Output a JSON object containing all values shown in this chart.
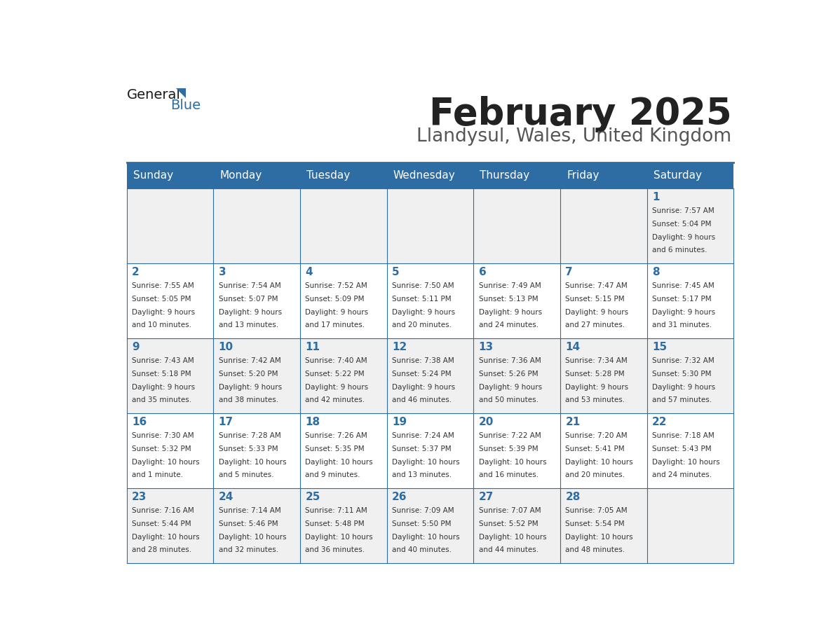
{
  "title": "February 2025",
  "subtitle": "Llandysul, Wales, United Kingdom",
  "header_bg": "#2E6DA4",
  "header_text": "#FFFFFF",
  "day_names": [
    "Sunday",
    "Monday",
    "Tuesday",
    "Wednesday",
    "Thursday",
    "Friday",
    "Saturday"
  ],
  "alt_row_bg": "#F0F0F0",
  "white_bg": "#FFFFFF",
  "border_color": "#2E6DA4",
  "title_color": "#222222",
  "subtitle_color": "#555555",
  "cell_text_color": "#333333",
  "day_num_color": "#2E6DA4",
  "logo_general_color": "#1A1A1A",
  "logo_blue_color": "#2E6DA4",
  "days": [
    {
      "date": 1,
      "row": 0,
      "col": 6,
      "sunrise": "7:57 AM",
      "sunset": "5:04 PM",
      "daylight_l1": "9 hours",
      "daylight_l2": "and 6 minutes."
    },
    {
      "date": 2,
      "row": 1,
      "col": 0,
      "sunrise": "7:55 AM",
      "sunset": "5:05 PM",
      "daylight_l1": "9 hours",
      "daylight_l2": "and 10 minutes."
    },
    {
      "date": 3,
      "row": 1,
      "col": 1,
      "sunrise": "7:54 AM",
      "sunset": "5:07 PM",
      "daylight_l1": "9 hours",
      "daylight_l2": "and 13 minutes."
    },
    {
      "date": 4,
      "row": 1,
      "col": 2,
      "sunrise": "7:52 AM",
      "sunset": "5:09 PM",
      "daylight_l1": "9 hours",
      "daylight_l2": "and 17 minutes."
    },
    {
      "date": 5,
      "row": 1,
      "col": 3,
      "sunrise": "7:50 AM",
      "sunset": "5:11 PM",
      "daylight_l1": "9 hours",
      "daylight_l2": "and 20 minutes."
    },
    {
      "date": 6,
      "row": 1,
      "col": 4,
      "sunrise": "7:49 AM",
      "sunset": "5:13 PM",
      "daylight_l1": "9 hours",
      "daylight_l2": "and 24 minutes."
    },
    {
      "date": 7,
      "row": 1,
      "col": 5,
      "sunrise": "7:47 AM",
      "sunset": "5:15 PM",
      "daylight_l1": "9 hours",
      "daylight_l2": "and 27 minutes."
    },
    {
      "date": 8,
      "row": 1,
      "col": 6,
      "sunrise": "7:45 AM",
      "sunset": "5:17 PM",
      "daylight_l1": "9 hours",
      "daylight_l2": "and 31 minutes."
    },
    {
      "date": 9,
      "row": 2,
      "col": 0,
      "sunrise": "7:43 AM",
      "sunset": "5:18 PM",
      "daylight_l1": "9 hours",
      "daylight_l2": "and 35 minutes."
    },
    {
      "date": 10,
      "row": 2,
      "col": 1,
      "sunrise": "7:42 AM",
      "sunset": "5:20 PM",
      "daylight_l1": "9 hours",
      "daylight_l2": "and 38 minutes."
    },
    {
      "date": 11,
      "row": 2,
      "col": 2,
      "sunrise": "7:40 AM",
      "sunset": "5:22 PM",
      "daylight_l1": "9 hours",
      "daylight_l2": "and 42 minutes."
    },
    {
      "date": 12,
      "row": 2,
      "col": 3,
      "sunrise": "7:38 AM",
      "sunset": "5:24 PM",
      "daylight_l1": "9 hours",
      "daylight_l2": "and 46 minutes."
    },
    {
      "date": 13,
      "row": 2,
      "col": 4,
      "sunrise": "7:36 AM",
      "sunset": "5:26 PM",
      "daylight_l1": "9 hours",
      "daylight_l2": "and 50 minutes."
    },
    {
      "date": 14,
      "row": 2,
      "col": 5,
      "sunrise": "7:34 AM",
      "sunset": "5:28 PM",
      "daylight_l1": "9 hours",
      "daylight_l2": "and 53 minutes."
    },
    {
      "date": 15,
      "row": 2,
      "col": 6,
      "sunrise": "7:32 AM",
      "sunset": "5:30 PM",
      "daylight_l1": "9 hours",
      "daylight_l2": "and 57 minutes."
    },
    {
      "date": 16,
      "row": 3,
      "col": 0,
      "sunrise": "7:30 AM",
      "sunset": "5:32 PM",
      "daylight_l1": "10 hours",
      "daylight_l2": "and 1 minute."
    },
    {
      "date": 17,
      "row": 3,
      "col": 1,
      "sunrise": "7:28 AM",
      "sunset": "5:33 PM",
      "daylight_l1": "10 hours",
      "daylight_l2": "and 5 minutes."
    },
    {
      "date": 18,
      "row": 3,
      "col": 2,
      "sunrise": "7:26 AM",
      "sunset": "5:35 PM",
      "daylight_l1": "10 hours",
      "daylight_l2": "and 9 minutes."
    },
    {
      "date": 19,
      "row": 3,
      "col": 3,
      "sunrise": "7:24 AM",
      "sunset": "5:37 PM",
      "daylight_l1": "10 hours",
      "daylight_l2": "and 13 minutes."
    },
    {
      "date": 20,
      "row": 3,
      "col": 4,
      "sunrise": "7:22 AM",
      "sunset": "5:39 PM",
      "daylight_l1": "10 hours",
      "daylight_l2": "and 16 minutes."
    },
    {
      "date": 21,
      "row": 3,
      "col": 5,
      "sunrise": "7:20 AM",
      "sunset": "5:41 PM",
      "daylight_l1": "10 hours",
      "daylight_l2": "and 20 minutes."
    },
    {
      "date": 22,
      "row": 3,
      "col": 6,
      "sunrise": "7:18 AM",
      "sunset": "5:43 PM",
      "daylight_l1": "10 hours",
      "daylight_l2": "and 24 minutes."
    },
    {
      "date": 23,
      "row": 4,
      "col": 0,
      "sunrise": "7:16 AM",
      "sunset": "5:44 PM",
      "daylight_l1": "10 hours",
      "daylight_l2": "and 28 minutes."
    },
    {
      "date": 24,
      "row": 4,
      "col": 1,
      "sunrise": "7:14 AM",
      "sunset": "5:46 PM",
      "daylight_l1": "10 hours",
      "daylight_l2": "and 32 minutes."
    },
    {
      "date": 25,
      "row": 4,
      "col": 2,
      "sunrise": "7:11 AM",
      "sunset": "5:48 PM",
      "daylight_l1": "10 hours",
      "daylight_l2": "and 36 minutes."
    },
    {
      "date": 26,
      "row": 4,
      "col": 3,
      "sunrise": "7:09 AM",
      "sunset": "5:50 PM",
      "daylight_l1": "10 hours",
      "daylight_l2": "and 40 minutes."
    },
    {
      "date": 27,
      "row": 4,
      "col": 4,
      "sunrise": "7:07 AM",
      "sunset": "5:52 PM",
      "daylight_l1": "10 hours",
      "daylight_l2": "and 44 minutes."
    },
    {
      "date": 28,
      "row": 4,
      "col": 5,
      "sunrise": "7:05 AM",
      "sunset": "5:54 PM",
      "daylight_l1": "10 hours",
      "daylight_l2": "and 48 minutes."
    }
  ]
}
